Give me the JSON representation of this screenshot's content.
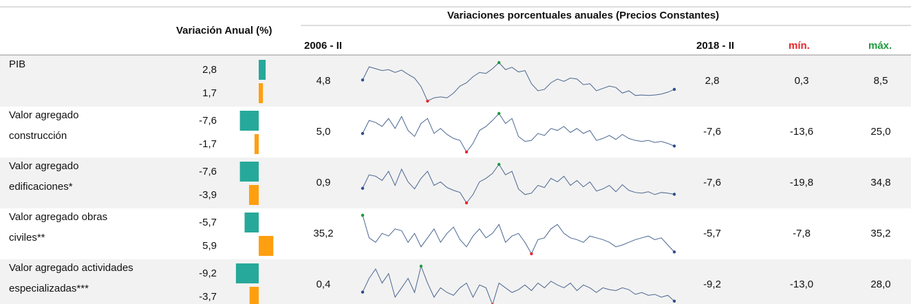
{
  "header": {
    "variation_label": "Variación Anual (%)",
    "title": "Variaciones porcentuales anuales  (Precios Constantes)",
    "first_period": "2006 - II",
    "last_period": "2018 - II",
    "min_label": "mín.",
    "max_label": "máx."
  },
  "colors": {
    "upper_bar": "#26a99a",
    "lower_bar": "#ff9f0f",
    "line": "#4a6690",
    "min": "#e8262b",
    "max": "#1e9a3c",
    "ends": "#2b4f8a"
  },
  "rows": [
    {
      "label": [
        "PIB"
      ],
      "annual": [
        2.8,
        1.7
      ],
      "annual_labels": [
        "2,8",
        "1,7"
      ],
      "first": "4,8",
      "last": "2,8",
      "min": "0,3",
      "max": "8,5",
      "series": [
        4.8,
        7.6,
        7.2,
        6.8,
        7.0,
        6.4,
        6.9,
        6.0,
        5.2,
        3.4,
        0.3,
        1.0,
        1.2,
        1.0,
        2.0,
        3.5,
        4.2,
        5.5,
        6.4,
        6.2,
        7.2,
        8.5,
        7.0,
        7.5,
        6.5,
        6.8,
        4.0,
        2.5,
        2.8,
        4.2,
        5.0,
        4.5,
        5.2,
        5.0,
        3.8,
        4.0,
        2.5,
        3.0,
        3.5,
        3.2,
        2.0,
        2.5,
        1.5,
        1.6,
        1.5,
        1.6,
        1.8,
        2.2,
        2.8
      ]
    },
    {
      "label": [
        "Valor agregado",
        "construcción"
      ],
      "annual": [
        -7.6,
        -1.7
      ],
      "annual_labels": [
        "-7,6",
        "-1,7"
      ],
      "first": "5,0",
      "last": "-7,6",
      "min": "-13,6",
      "max": "25,0",
      "series": [
        5.0,
        18,
        16,
        12,
        20,
        10,
        22,
        8,
        2,
        15,
        20,
        5,
        10,
        4,
        0,
        -2,
        -13.6,
        -5,
        8,
        12,
        18,
        25.0,
        15,
        20,
        2,
        -3,
        -2,
        5,
        3,
        10,
        8,
        12,
        6,
        10,
        5,
        8,
        -2,
        0,
        3,
        -1,
        4,
        0,
        -2,
        -3,
        -2,
        -4,
        -3,
        -5,
        -7.6
      ]
    },
    {
      "label": [
        "Valor agregado",
        "edificaciones*"
      ],
      "annual": [
        -7.6,
        -3.9
      ],
      "annual_labels": [
        "-7,6",
        "-3,9"
      ],
      "first": "0,9",
      "last": "-7,6",
      "min": "-19,8",
      "max": "34,8",
      "series": [
        0.9,
        20,
        18,
        12,
        25,
        5,
        28,
        10,
        0,
        15,
        25,
        5,
        10,
        2,
        -2,
        -5,
        -19.8,
        -8,
        10,
        15,
        22,
        34.8,
        20,
        25,
        0,
        -8,
        -6,
        5,
        2,
        15,
        10,
        18,
        5,
        12,
        3,
        10,
        -3,
        0,
        5,
        -4,
        6,
        -2,
        -5,
        -6,
        -4,
        -8,
        -5,
        -6,
        -7.6
      ]
    },
    {
      "label": [
        "Valor agregado obras",
        "civiles**"
      ],
      "annual": [
        -5.7,
        5.9
      ],
      "annual_labels": [
        "-5,7",
        "5,9"
      ],
      "first": "35,2",
      "last": "-5,7",
      "min": "-7,8",
      "max": "35,2",
      "series": [
        35.2,
        10,
        5,
        15,
        12,
        20,
        18,
        5,
        15,
        0,
        10,
        20,
        5,
        15,
        22,
        8,
        0,
        12,
        20,
        10,
        15,
        25,
        5,
        12,
        15,
        5,
        -7.8,
        8,
        10,
        20,
        25,
        15,
        10,
        8,
        5,
        12,
        10,
        8,
        5,
        0,
        2,
        5,
        8,
        10,
        12,
        8,
        10,
        2,
        -5.7
      ]
    },
    {
      "label": [
        "Valor agregado actividades",
        "especializadas***"
      ],
      "annual": [
        -9.2,
        -3.7
      ],
      "annual_labels": [
        "-9,2",
        "-3,7"
      ],
      "first": "0,4",
      "last": "-9,2",
      "min": "-13,0",
      "max": "28,0",
      "series": [
        0.4,
        15,
        25,
        10,
        20,
        -5,
        5,
        15,
        0,
        28.0,
        10,
        -5,
        5,
        0,
        -3,
        5,
        10,
        -5,
        8,
        5,
        -13.0,
        10,
        5,
        0,
        3,
        8,
        2,
        10,
        5,
        12,
        8,
        5,
        10,
        2,
        8,
        5,
        0,
        5,
        3,
        2,
        5,
        3,
        -2,
        0,
        -3,
        -2,
        -5,
        -3,
        -9.2
      ]
    }
  ]
}
